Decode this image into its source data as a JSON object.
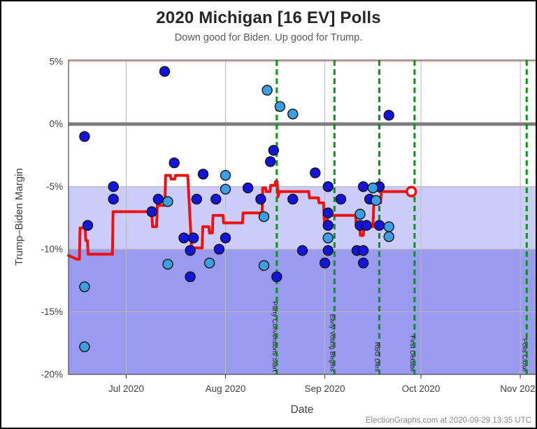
{
  "window": {
    "title": "2020 Michigan [16 EV] Polls",
    "subtitle": "Down good for Biden. Up good for Trump.",
    "footer": "ElectionGraphs.com at 2020-09-29 13:35 UTC"
  },
  "colors": {
    "band_light": "#ccccfa",
    "band_dark": "#9a9af0",
    "zero_line": "#7d7d7d",
    "grid_pos": "#f2b6b6",
    "grid_neg": "#b5b5c2",
    "grid_month": "#b9b9c4",
    "event_line": "#00990f",
    "avg_line": "#ee1111",
    "dot_dark": "#1414dd",
    "dot_light": "#3b9fe3",
    "dot_stroke": "#111111",
    "plot_border": "#4a4a4a",
    "tick_text": "#3f3f3f",
    "event_text": "#1a1a1a"
  },
  "chart_data": {
    "type": "scatter",
    "title": "2020 Michigan [16 EV] Polls",
    "subtitle": "Down good for Biden. Up good for Trump.",
    "xlabel": "Date",
    "ylabel": "Trump–Biden Margin",
    "x_domain": [
      "2020-06-13",
      "2020-11-06"
    ],
    "y_domain_pct": [
      -20.0,
      5.1
    ],
    "grid": true,
    "x_ticks": [
      {
        "date": "2020-07-01",
        "label": "Jul 2020"
      },
      {
        "date": "2020-08-01",
        "label": "Aug 2020"
      },
      {
        "date": "2020-09-01",
        "label": "Sep 2020"
      },
      {
        "date": "2020-10-01",
        "label": "Oct 2020"
      },
      {
        "date": "2020-11-01",
        "label": "Nov 2020"
      }
    ],
    "y_ticks": [
      {
        "value": 5,
        "label": "5%"
      },
      {
        "value": 0,
        "label": "0%"
      },
      {
        "value": -5,
        "label": "-5%"
      },
      {
        "value": -10,
        "label": "-10%"
      },
      {
        "value": -15,
        "label": "-15%"
      },
      {
        "value": -20,
        "label": "-20%"
      }
    ],
    "zones": [
      {
        "name": "weak-biden",
        "from": -5,
        "to": -10
      },
      {
        "name": "strong-biden",
        "from": -10,
        "to": -20
      }
    ],
    "zero_line_value": 0,
    "events": [
      {
        "date": "2020-08-17",
        "label": "Party Conventions Start"
      },
      {
        "date": "2020-09-04",
        "label": "Early Voting Begins"
      },
      {
        "date": "2020-09-18",
        "label": "RBG Dies"
      },
      {
        "date": "2020-09-29",
        "label": "First Debate"
      },
      {
        "date": "2020-11-03",
        "label": "Polls Close"
      }
    ],
    "series": [
      {
        "name": "polls-dark",
        "kind": "scatter",
        "points": [
          [
            "2020-06-18",
            -1.0
          ],
          [
            "2020-06-19",
            -8.1
          ],
          [
            "2020-06-27",
            -5.0
          ],
          [
            "2020-06-27",
            -6.0
          ],
          [
            "2020-07-09",
            -7.0
          ],
          [
            "2020-07-11",
            -6.0
          ],
          [
            "2020-07-13",
            4.2
          ],
          [
            "2020-07-16",
            -3.1
          ],
          [
            "2020-07-19",
            -9.1
          ],
          [
            "2020-07-21",
            -10.1
          ],
          [
            "2020-07-21",
            -12.2
          ],
          [
            "2020-07-22",
            -9.1
          ],
          [
            "2020-07-23",
            -6.0
          ],
          [
            "2020-07-25",
            -4.0
          ],
          [
            "2020-07-29",
            -6.0
          ],
          [
            "2020-07-30",
            -10.0
          ],
          [
            "2020-08-01",
            -9.1
          ],
          [
            "2020-08-08",
            -5.1
          ],
          [
            "2020-08-12",
            -6.0
          ],
          [
            "2020-08-15",
            -3.0
          ],
          [
            "2020-08-16",
            -2.1
          ],
          [
            "2020-08-17",
            -12.2
          ],
          [
            "2020-08-22",
            -6.0
          ],
          [
            "2020-08-25",
            -10.1
          ],
          [
            "2020-08-29",
            -3.9
          ],
          [
            "2020-09-01",
            -11.1
          ],
          [
            "2020-09-02",
            -5.0
          ],
          [
            "2020-09-02",
            -7.1
          ],
          [
            "2020-09-02",
            -8.1
          ],
          [
            "2020-09-02",
            -10.1
          ],
          [
            "2020-09-06",
            -6.0
          ],
          [
            "2020-09-11",
            -10.1
          ],
          [
            "2020-09-12",
            -8.1
          ],
          [
            "2020-09-13",
            -5.0
          ],
          [
            "2020-09-13",
            -10.1
          ],
          [
            "2020-09-13",
            -11.1
          ],
          [
            "2020-09-14",
            -8.1
          ],
          [
            "2020-09-15",
            -6.0
          ],
          [
            "2020-09-18",
            -5.0
          ],
          [
            "2020-09-18",
            -8.1
          ],
          [
            "2020-09-21",
            0.7
          ]
        ]
      },
      {
        "name": "polls-light",
        "kind": "scatter",
        "points": [
          [
            "2020-06-18",
            -13.0
          ],
          [
            "2020-06-18",
            -17.8
          ],
          [
            "2020-07-14",
            -6.2
          ],
          [
            "2020-07-14",
            -11.2
          ],
          [
            "2020-07-27",
            -11.1
          ],
          [
            "2020-08-01",
            -4.1
          ],
          [
            "2020-08-01",
            -5.2
          ],
          [
            "2020-08-13",
            -7.4
          ],
          [
            "2020-08-13",
            -11.3
          ],
          [
            "2020-08-14",
            2.7
          ],
          [
            "2020-08-18",
            1.4
          ],
          [
            "2020-08-22",
            0.8
          ],
          [
            "2020-09-02",
            -9.1
          ],
          [
            "2020-09-12",
            -7.2
          ],
          [
            "2020-09-16",
            -5.1
          ],
          [
            "2020-09-17",
            -6.1
          ],
          [
            "2020-09-21",
            -8.2
          ],
          [
            "2020-09-21",
            -9.0
          ]
        ]
      },
      {
        "name": "average",
        "kind": "step-line",
        "epoch": "2020-06-13",
        "points_day_pct": [
          [
            0,
            -10.5
          ],
          [
            2.6,
            -10.8
          ],
          [
            3.4,
            -10.8
          ],
          [
            3.6,
            -8.3
          ],
          [
            5.2,
            -8.3
          ],
          [
            5.4,
            -9.3
          ],
          [
            5.9,
            -9.3
          ],
          [
            6.1,
            -10.4
          ],
          [
            13.7,
            -10.4
          ],
          [
            13.9,
            -7.0
          ],
          [
            26.0,
            -7.0
          ],
          [
            26.2,
            -8.2
          ],
          [
            27.5,
            -8.2
          ],
          [
            27.7,
            -6.5
          ],
          [
            30.1,
            -6.5
          ],
          [
            30.3,
            -4.1
          ],
          [
            31.8,
            -4.1
          ],
          [
            32.0,
            -4.4
          ],
          [
            33.2,
            -4.4
          ],
          [
            33.4,
            -4.1
          ],
          [
            37.2,
            -4.1
          ],
          [
            38.5,
            -10.3
          ],
          [
            38.8,
            -9.9
          ],
          [
            41.7,
            -9.9
          ],
          [
            41.9,
            -8.2
          ],
          [
            43.8,
            -8.2
          ],
          [
            44.0,
            -8.7
          ],
          [
            44.9,
            -8.7
          ],
          [
            45.1,
            -7.3
          ],
          [
            48.2,
            -7.3
          ],
          [
            48.4,
            -7.9
          ],
          [
            54.3,
            -7.9
          ],
          [
            54.5,
            -7.1
          ],
          [
            60.4,
            -7.1
          ],
          [
            60.6,
            -5.1
          ],
          [
            61.5,
            -5.1
          ],
          [
            61.7,
            -5.4
          ],
          [
            62.9,
            -5.4
          ],
          [
            63.1,
            -4.9
          ],
          [
            64.4,
            -4.9
          ],
          [
            64.6,
            -4.6
          ],
          [
            65.1,
            -4.6
          ],
          [
            65.4,
            -5.8
          ],
          [
            65.8,
            -5.4
          ],
          [
            75.0,
            -5.4
          ],
          [
            75.2,
            -5.9
          ],
          [
            78.0,
            -5.9
          ],
          [
            78.2,
            -6.3
          ],
          [
            79.6,
            -6.3
          ],
          [
            79.8,
            -7.6
          ],
          [
            80.0,
            -8.3
          ],
          [
            80.3,
            -7.7
          ],
          [
            80.5,
            -8.3
          ],
          [
            80.8,
            -7.5
          ],
          [
            81.5,
            -7.3
          ],
          [
            89.6,
            -7.3
          ],
          [
            89.8,
            -8.2
          ],
          [
            90.9,
            -8.2
          ],
          [
            91.1,
            -8.9
          ],
          [
            92.0,
            -8.9
          ],
          [
            92.2,
            -8.2
          ],
          [
            95.0,
            -8.2
          ],
          [
            95.3,
            -6.3
          ],
          [
            97.4,
            -6.3
          ],
          [
            97.6,
            -5.4
          ],
          [
            107.0,
            -5.4
          ]
        ],
        "latest_marker": {
          "day": 107.0,
          "pct": -5.4
        }
      }
    ]
  }
}
